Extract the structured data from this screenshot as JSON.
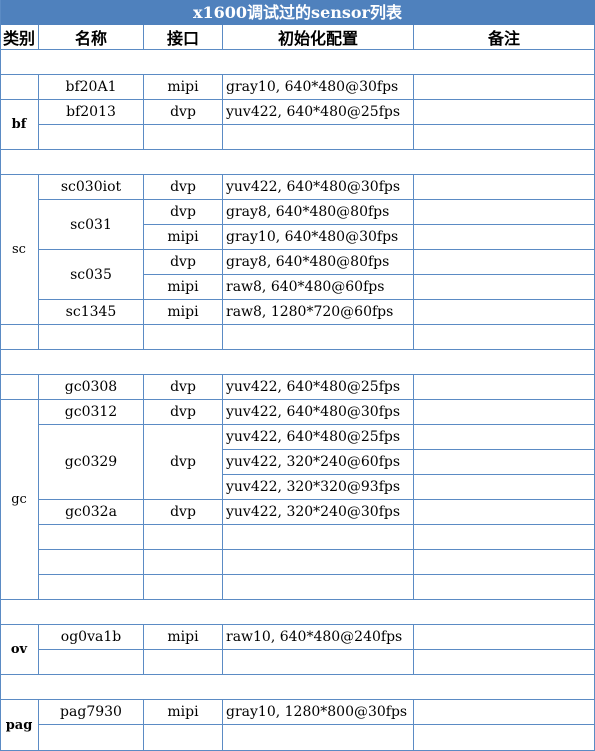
{
  "title": "x1600调试过的sensor列表",
  "headers": {
    "category": "类别",
    "name": "名称",
    "interface": "接口",
    "config": "初始化配置",
    "note": "备注"
  },
  "categories": {
    "bf": "bf",
    "sc": "sc",
    "gc": "gc",
    "ov": "ov",
    "pag": "pag"
  },
  "sensors": {
    "bf20a1": {
      "name": "bf20A1",
      "interface": "mipi",
      "config": "gray10, 640*480@30fps"
    },
    "bf2013": {
      "name": "bf2013",
      "interface": "dvp",
      "config": "yuv422, 640*480@25fps"
    },
    "sc030iot": {
      "name": "sc030iot",
      "interface": "dvp",
      "config": "yuv422, 640*480@30fps"
    },
    "sc031": {
      "name": "sc031",
      "interfaces": [
        "dvp",
        "mipi"
      ],
      "configs": [
        "gray8, 640*480@80fps",
        "gray10, 640*480@30fps"
      ]
    },
    "sc035": {
      "name": "sc035",
      "interfaces": [
        "dvp",
        "mipi"
      ],
      "configs": [
        "gray8, 640*480@80fps",
        "raw8, 640*480@60fps"
      ]
    },
    "sc1345": {
      "name": "sc1345",
      "interface": "mipi",
      "config": "raw8, 1280*720@60fps"
    },
    "gc0308": {
      "name": "gc0308",
      "interface": "dvp",
      "config": "yuv422, 640*480@25fps"
    },
    "gc0312": {
      "name": "gc0312",
      "interface": "dvp",
      "config": "yuv422, 640*480@30fps"
    },
    "gc0329": {
      "name": "gc0329",
      "interface": "dvp",
      "configs": [
        "yuv422, 640*480@25fps",
        "yuv422, 320*240@60fps",
        "yuv422, 320*320@93fps"
      ]
    },
    "gc032a": {
      "name": "gc032a",
      "interface": "dvp",
      "config": "yuv422, 320*240@30fps"
    },
    "og0va1b": {
      "name": "og0va1b",
      "interface": "mipi",
      "config": "raw10, 640*480@240fps"
    },
    "pag7930": {
      "name": "pag7930",
      "interface": "mipi",
      "config": "gray10, 1280*800@30fps"
    }
  }
}
